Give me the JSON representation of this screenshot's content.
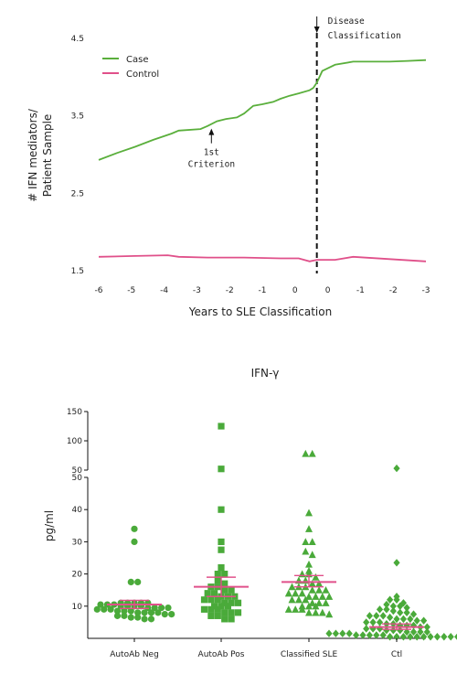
{
  "colors": {
    "case": "#5aaf3c",
    "control": "#e0508a",
    "scatter": "#4aaa3a",
    "mean": "#e0508a"
  },
  "chart_data": [
    {
      "type": "line",
      "title": "",
      "xlabel": "Years to SLE Classification",
      "ylabel_lines": [
        "# IFN mediators/",
        "Patient Sample"
      ],
      "x_tick_labels": [
        "-6",
        "-5",
        "-4",
        "-3",
        "-2",
        "-1",
        "0",
        "0",
        "-1",
        "-2",
        "-3"
      ],
      "x_range": [
        -6,
        3
      ],
      "y_ticks": [
        "1.5",
        "2.5",
        "3.5",
        "4.5"
      ],
      "ylim": [
        1.5,
        4.5
      ],
      "legend_position": "top-left",
      "series": [
        {
          "name": "Case",
          "color": "#5aaf3c",
          "points": [
            [
              -6,
              2.93
            ],
            [
              -5.5,
              3.02
            ],
            [
              -5,
              3.1
            ],
            [
              -4.5,
              3.19
            ],
            [
              -4,
              3.27
            ],
            [
              -3.8,
              3.31
            ],
            [
              -3.2,
              3.33
            ],
            [
              -3,
              3.37
            ],
            [
              -2.75,
              3.43
            ],
            [
              -2.5,
              3.46
            ],
            [
              -2.2,
              3.48
            ],
            [
              -2,
              3.53
            ],
            [
              -1.75,
              3.63
            ],
            [
              -1.5,
              3.65
            ],
            [
              -1.2,
              3.68
            ],
            [
              -1,
              3.72
            ],
            [
              -0.75,
              3.76
            ],
            [
              -0.5,
              3.79
            ],
            [
              -0.2,
              3.83
            ],
            [
              -0.1,
              3.86
            ],
            [
              0,
              3.93
            ],
            [
              0.15,
              4.08
            ],
            [
              0.5,
              4.16
            ],
            [
              1,
              4.2
            ],
            [
              1.5,
              4.2
            ],
            [
              2,
              4.2
            ],
            [
              2.5,
              4.21
            ],
            [
              3,
              4.22
            ]
          ]
        },
        {
          "name": "Control",
          "color": "#e0508a",
          "points": [
            [
              -6,
              1.68
            ],
            [
              -5,
              1.69
            ],
            [
              -4.1,
              1.7
            ],
            [
              -3.8,
              1.68
            ],
            [
              -3,
              1.67
            ],
            [
              -2,
              1.67
            ],
            [
              -1,
              1.66
            ],
            [
              -0.5,
              1.66
            ],
            [
              -0.2,
              1.62
            ],
            [
              0,
              1.64
            ],
            [
              0.5,
              1.64
            ],
            [
              1,
              1.68
            ],
            [
              2,
              1.65
            ],
            [
              3,
              1.62
            ]
          ]
        }
      ],
      "annotations": [
        {
          "lines": [
            "1st",
            "Criterion"
          ],
          "x": -2.9,
          "y": 3.37
        },
        {
          "lines": [
            "Disease",
            "Classification"
          ],
          "x": 0,
          "y": 4.5
        }
      ],
      "vertical_line": {
        "x": 0,
        "style": "dashed"
      }
    },
    {
      "type": "scatter",
      "title": "IFN-γ",
      "xlabel": "",
      "ylabel": "pg/ml",
      "categories": [
        "AutoAb Neg",
        "AutoAb Pos",
        "Classified SLE",
        "Ctl"
      ],
      "y_axis_break": true,
      "y_ticks_lower": [
        "10",
        "20",
        "30",
        "40",
        "50"
      ],
      "y_ticks_upper": [
        "50",
        "100",
        "150"
      ],
      "ylim_lower": [
        0,
        50
      ],
      "ylim_upper": [
        50,
        150
      ],
      "groups": [
        {
          "category": "AutoAb Neg",
          "marker": "circle",
          "mean": 10.5,
          "sem_low": 9.3,
          "sem_high": 11.8,
          "values": [
            34,
            30,
            17.5,
            17.5,
            11,
            11,
            11,
            11,
            11,
            10.5,
            10.5,
            10.5,
            10,
            10,
            10,
            10,
            9.5,
            9.5,
            9.5,
            9.5,
            9,
            9,
            9,
            8.5,
            8.5,
            8.5,
            8,
            8,
            8,
            8,
            7.5,
            7.5,
            7,
            7,
            6.5,
            6.5,
            6,
            6
          ]
        },
        {
          "category": "AutoAb Pos",
          "marker": "square",
          "mean": 16,
          "sem_low": 13,
          "sem_high": 19,
          "values": [
            125,
            52,
            40,
            30,
            27.5,
            22,
            20,
            20,
            18,
            17,
            16,
            16,
            15,
            15,
            14,
            14,
            13,
            13,
            13,
            12,
            12,
            12,
            11,
            11,
            11,
            10,
            10,
            10,
            9,
            9,
            9,
            8,
            8,
            8,
            7,
            7,
            6,
            6
          ]
        },
        {
          "category": "Classified SLE",
          "marker": "triangle",
          "mean": 17.5,
          "sem_low": 16,
          "sem_high": 19.5,
          "values": [
            78,
            78,
            39,
            34,
            30,
            30,
            27,
            26,
            23,
            21,
            20,
            20,
            19,
            18,
            18,
            17,
            17,
            16,
            16,
            16,
            15,
            15,
            15,
            14,
            14,
            14,
            13,
            13,
            13,
            13,
            12,
            12,
            12,
            11,
            11,
            11,
            10,
            10,
            10,
            9,
            9,
            9,
            8,
            8,
            8,
            7.5
          ]
        },
        {
          "category": "Ctl",
          "marker": "diamond",
          "mean": 3.5,
          "sem_low": 2.8,
          "sem_high": 4.5,
          "values": [
            53,
            23.5,
            13,
            12,
            12,
            11,
            10.5,
            10,
            10,
            9.5,
            9,
            9,
            8.5,
            8,
            8,
            7.5,
            7,
            7,
            7,
            6.5,
            6,
            6,
            6,
            5.5,
            5.5,
            5,
            5,
            5,
            4.5,
            4.5,
            4,
            4,
            4,
            3.5,
            3.5,
            3,
            3,
            3,
            2.5,
            2.5,
            2.5,
            2,
            2,
            2,
            2,
            1.5,
            1.5,
            1.5,
            1.5,
            1,
            1,
            1,
            1,
            1,
            0.5,
            0.5,
            0.5,
            0.5,
            0.5,
            0.5,
            0.5,
            0.5,
            0.5,
            0.5,
            0.5,
            0.5
          ]
        }
      ]
    }
  ]
}
